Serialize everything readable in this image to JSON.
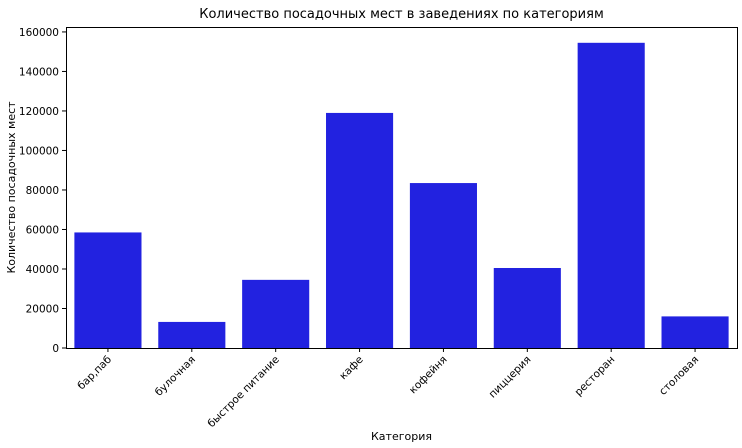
{
  "chart_data": {
    "type": "bar",
    "title": "Количество посадочных мест в заведениях по категориям",
    "xlabel": "Категория",
    "ylabel": "Количество посадочных мест",
    "categories": [
      "бар,паб",
      "булочная",
      "быстрое питание",
      "кафе",
      "кофейня",
      "пиццерия",
      "ресторан",
      "столовая"
    ],
    "values": [
      58500,
      13200,
      34500,
      119000,
      83500,
      40500,
      154500,
      16000
    ],
    "ylim": [
      0,
      162500
    ],
    "yticks": [
      0,
      20000,
      40000,
      60000,
      80000,
      100000,
      120000,
      140000,
      160000
    ],
    "ytick_labels": [
      "0",
      "20000",
      "40000",
      "60000",
      "80000",
      "100000",
      "120000",
      "140000",
      "160000"
    ],
    "bar_color": "#2222e0",
    "grid": false
  }
}
